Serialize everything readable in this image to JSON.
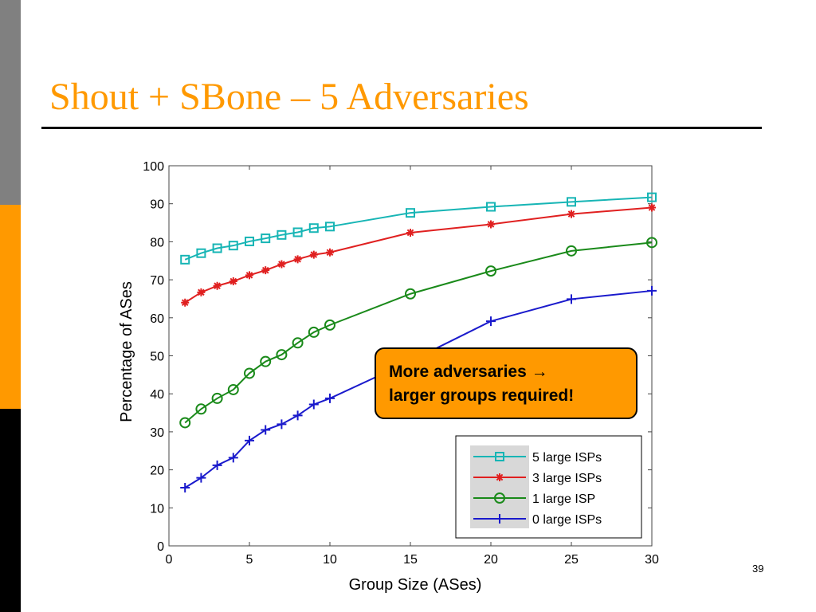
{
  "slide": {
    "title": "Shout + SBone – 5 Adversaries",
    "page_number": "39",
    "callout_line1": "More adversaries →",
    "callout_line2": "larger groups required!"
  },
  "colors": {
    "sidebar_gray": "#808080",
    "sidebar_orange": "#ff9900",
    "sidebar_black": "#000000",
    "title": "#ff9900",
    "callout_bg": "#ff9900"
  },
  "chart_data": {
    "type": "line",
    "xlabel": "Group Size (ASes)",
    "ylabel": "Percentage of ASes",
    "xlim": [
      0,
      30
    ],
    "ylim": [
      0,
      100
    ],
    "xticks": [
      0,
      5,
      10,
      15,
      20,
      25,
      30
    ],
    "yticks": [
      0,
      10,
      20,
      30,
      40,
      50,
      60,
      70,
      80,
      90,
      100
    ],
    "grid": false,
    "legend_position": "bottom-right",
    "x": [
      1,
      2,
      3,
      4,
      5,
      6,
      7,
      8,
      9,
      10,
      15,
      20,
      25,
      30
    ],
    "series": [
      {
        "name": "5 large ISPs",
        "color": "#17b5b5",
        "marker": "square",
        "values": [
          75.3,
          77.0,
          78.3,
          79.0,
          80.1,
          80.9,
          81.8,
          82.5,
          83.6,
          84.0,
          87.6,
          89.2,
          90.5,
          91.7
        ]
      },
      {
        "name": "3 large ISPs",
        "color": "#e02020",
        "marker": "star",
        "values": [
          64.0,
          66.7,
          68.4,
          69.6,
          71.2,
          72.5,
          74.1,
          75.4,
          76.6,
          77.2,
          82.4,
          84.6,
          87.3,
          89.0
        ]
      },
      {
        "name": "1 large ISP",
        "color": "#1a8a1a",
        "marker": "circle",
        "values": [
          32.4,
          36.0,
          38.8,
          41.1,
          45.4,
          48.5,
          50.3,
          53.4,
          56.2,
          58.1,
          66.3,
          72.3,
          77.6,
          79.8
        ]
      },
      {
        "name": "0 large ISPs",
        "color": "#1a1acc",
        "marker": "plus",
        "values": [
          15.3,
          17.9,
          21.2,
          23.2,
          27.7,
          30.5,
          32.0,
          34.3,
          37.2,
          38.8,
          48.6,
          59.1,
          64.9,
          67.1
        ]
      }
    ]
  }
}
